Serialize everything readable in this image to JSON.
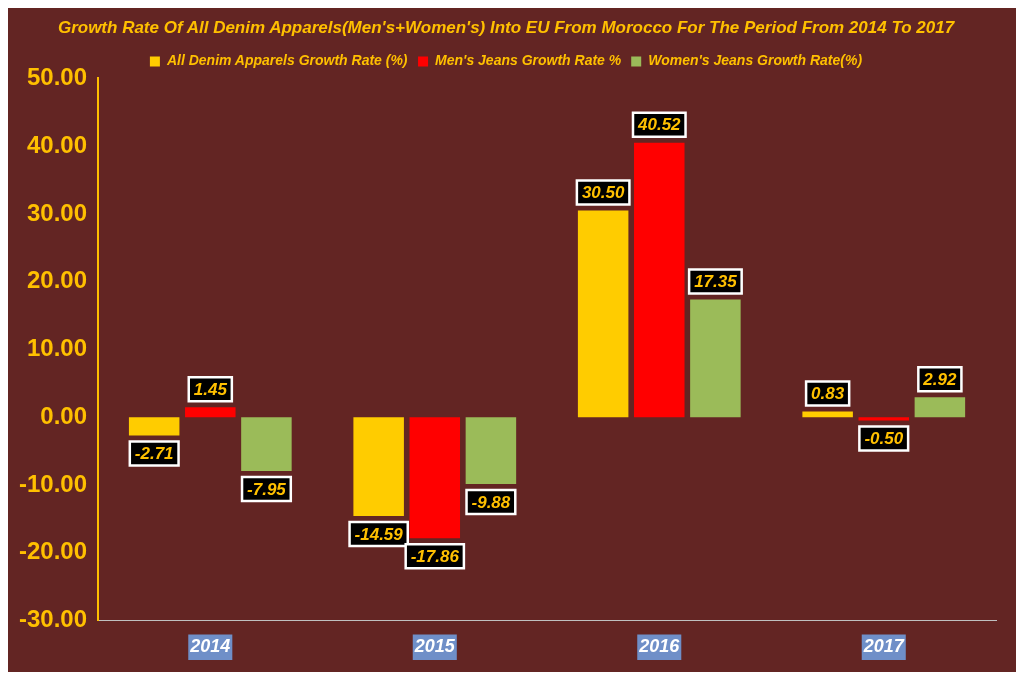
{
  "chart_data": {
    "type": "bar",
    "title": "Growth Rate Of All Denim Apparels(Men's+Women's) Into EU From Morocco For The Period From 2014 To 2017",
    "categories": [
      "2014",
      "2015",
      "2016",
      "2017"
    ],
    "series": [
      {
        "name": "All Denim Apparels Growth Rate (%)",
        "color": "#ffcc00",
        "values": [
          -2.71,
          -14.59,
          30.5,
          0.83
        ],
        "value_labels": [
          "-2.71",
          "-14.59",
          "30.50",
          "0.83"
        ]
      },
      {
        "name": "Men's Jeans Growth Rate %",
        "color": "#ff0000",
        "values": [
          1.45,
          -17.86,
          40.52,
          -0.5
        ],
        "value_labels": [
          "1.45",
          "-17.86",
          "40.52",
          "-0.50"
        ]
      },
      {
        "name": "Women's Jeans Growth Rate(%)",
        "color": "#9bbb59",
        "values": [
          -7.95,
          -9.88,
          17.35,
          2.92
        ],
        "value_labels": [
          "-7.95",
          "-9.88",
          "17.35",
          "2.92"
        ]
      }
    ],
    "ylim": [
      -30,
      50
    ],
    "yticks": [
      {
        "value": -30,
        "label": "-30.00"
      },
      {
        "value": -20,
        "label": "-20.00"
      },
      {
        "value": -10,
        "label": "-10.00"
      },
      {
        "value": 0,
        "label": "0.00"
      },
      {
        "value": 10,
        "label": "10.00"
      },
      {
        "value": 20,
        "label": "20.00"
      },
      {
        "value": 30,
        "label": "30.00"
      },
      {
        "value": 40,
        "label": "40.00"
      },
      {
        "value": 50,
        "label": "50.00"
      }
    ],
    "legend": "top"
  }
}
